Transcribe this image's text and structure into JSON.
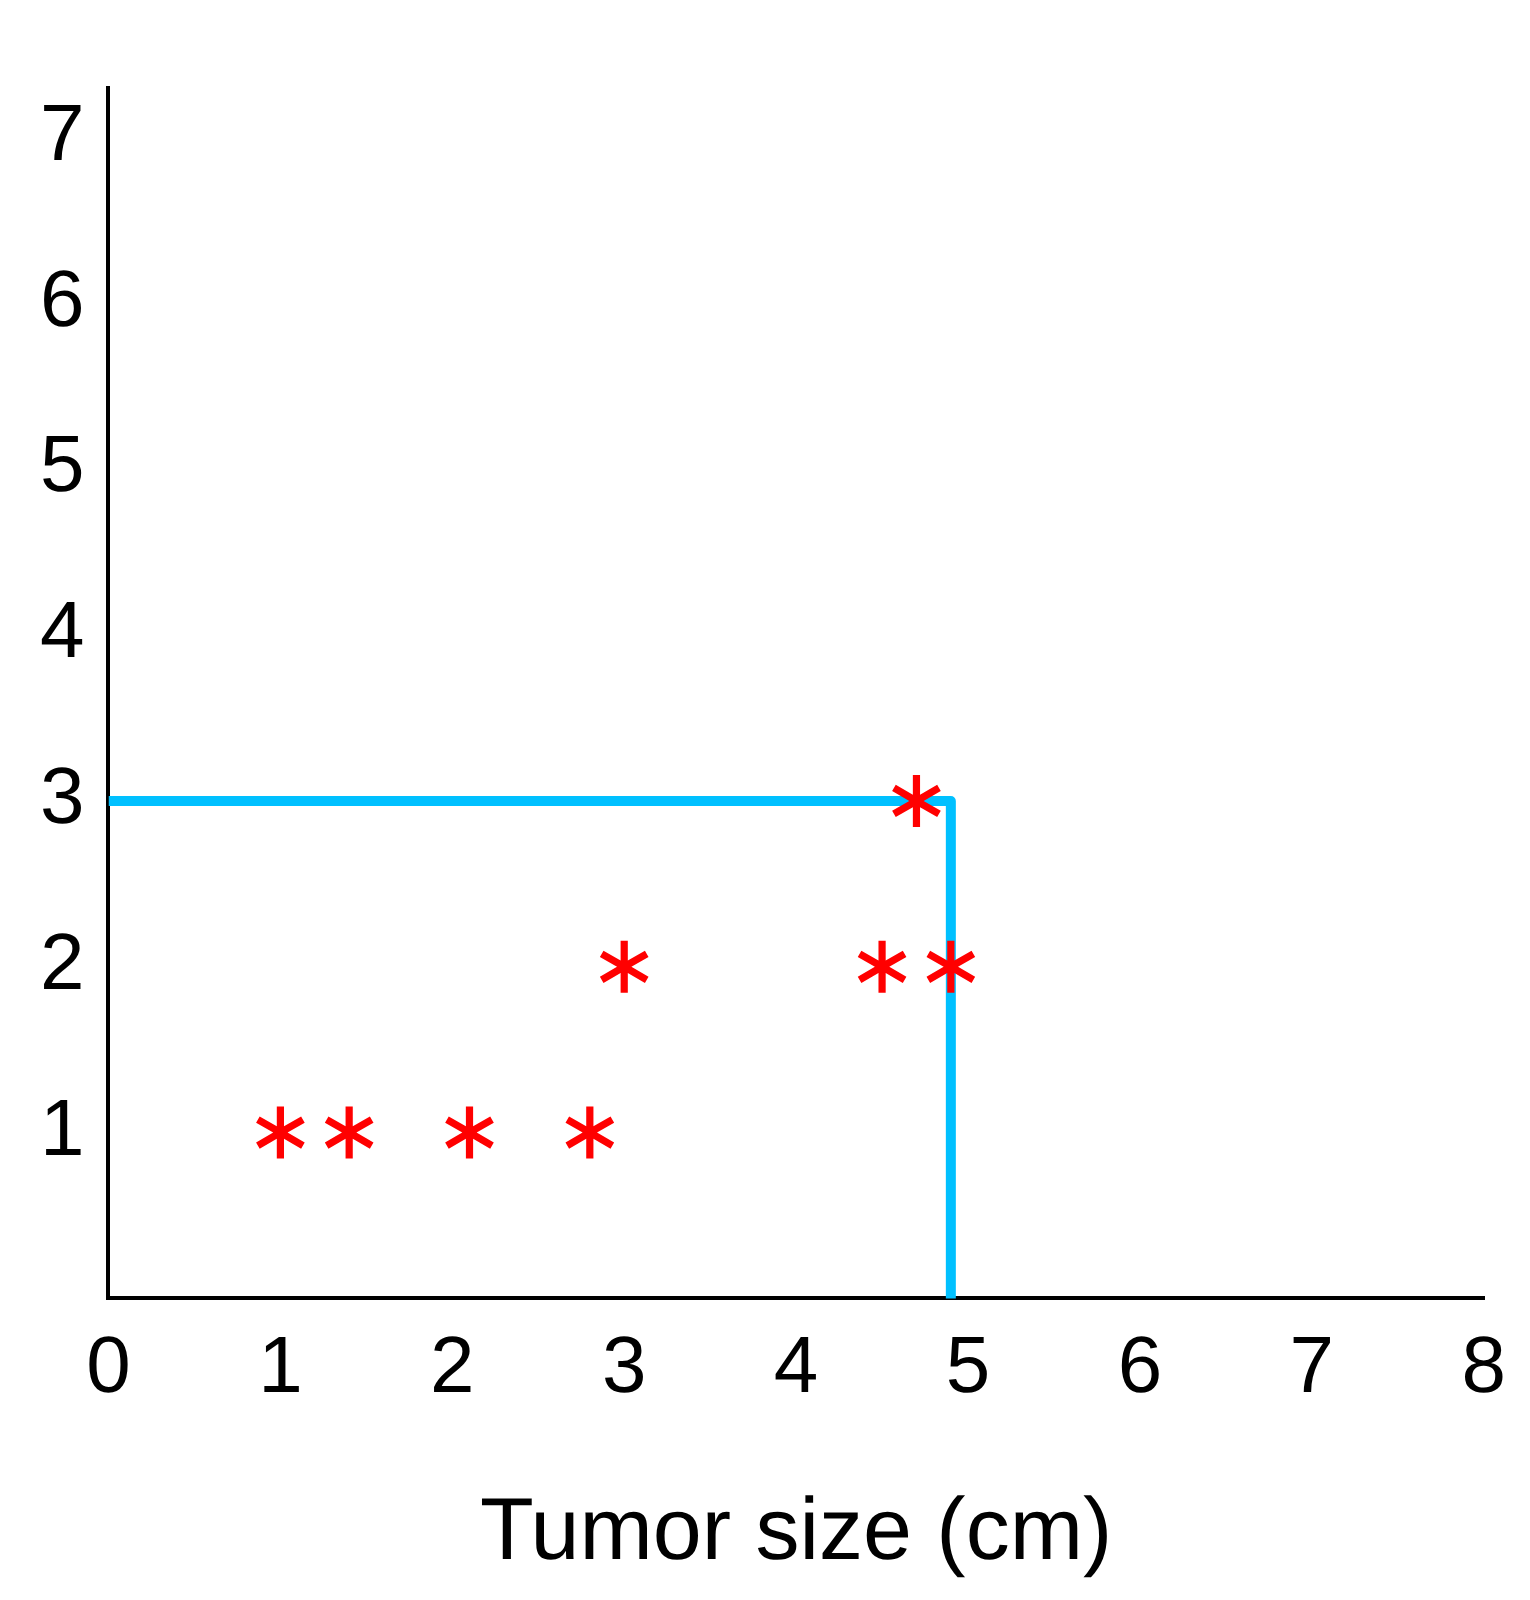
{
  "chart_data": {
    "type": "scatter",
    "xlabel": "Tumor size (cm)",
    "series": [
      {
        "color": "#ff0000",
        "marker": "star",
        "x": [
          1.0,
          1.4,
          2.1,
          2.8,
          3.0,
          4.5,
          4.9,
          4.7
        ],
        "values": [
          1,
          1,
          1,
          1,
          2,
          2,
          2,
          3
        ]
      },
      {
        "type": "line",
        "color": "#00c0ff",
        "marker": "none",
        "x": [
          0,
          4.9,
          4.9
        ],
        "values": [
          3,
          3,
          0
        ]
      }
    ],
    "xlim": [
      0,
      8
    ],
    "xticks": [
      0,
      1,
      2,
      3,
      4,
      5,
      6,
      7,
      8
    ],
    "ylim": [
      0,
      7.3
    ],
    "yticks": [
      1,
      2,
      3,
      4,
      5,
      6,
      7
    ],
    "grid": false,
    "legend": false
  }
}
